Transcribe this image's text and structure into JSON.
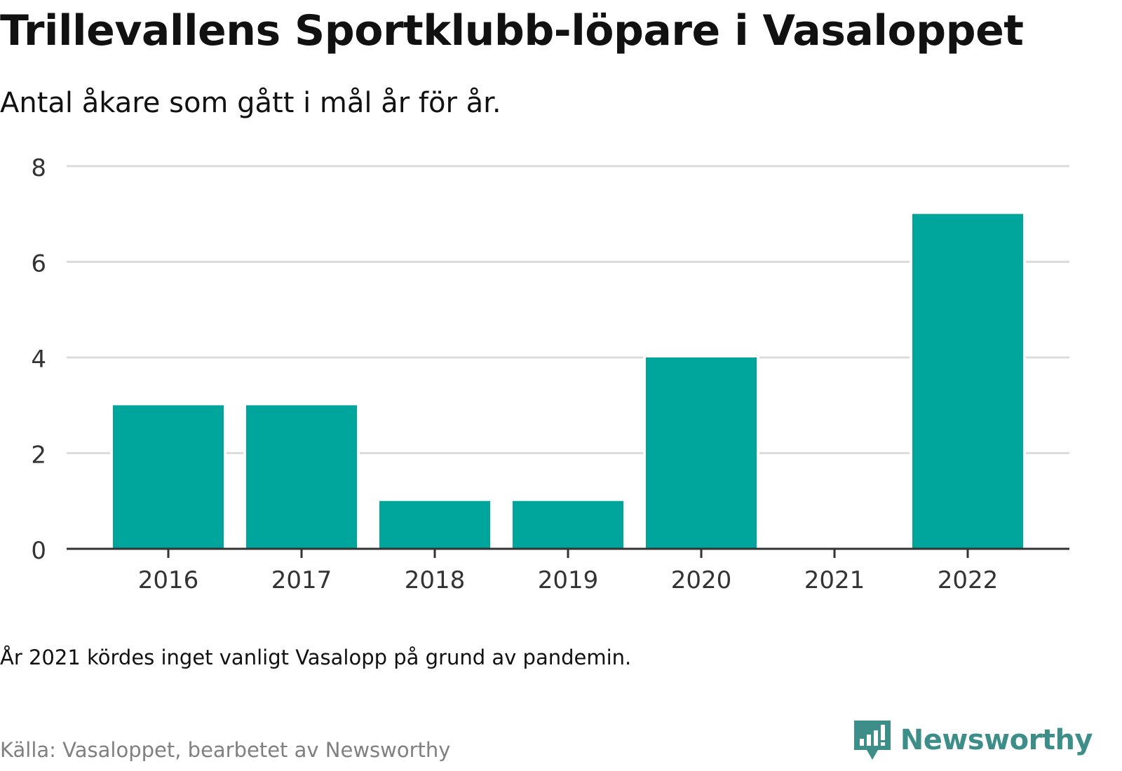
{
  "header": {
    "title": "Trillevallens Sportklubb-löpare i Vasaloppet",
    "subtitle": "Antal åkare som gått i mål år för år."
  },
  "chart_data": {
    "type": "bar",
    "categories": [
      "2016",
      "2017",
      "2018",
      "2019",
      "2020",
      "2021",
      "2022"
    ],
    "values": [
      3,
      3,
      1,
      1,
      4,
      0,
      7
    ],
    "yticks": [
      "0",
      "2",
      "4",
      "6",
      "8"
    ],
    "ylim": [
      0,
      8
    ],
    "grid": true,
    "bar_color": "#00a59b"
  },
  "footer": {
    "note": "År 2021 kördes inget vanligt Vasalopp på grund av pandemin.",
    "source": "Källa: Vasaloppet, bearbetet av Newsworthy",
    "brand": "Newsworthy",
    "brand_color": "#3d8e89",
    "brand_icon": "newsworthy-logo-icon"
  }
}
